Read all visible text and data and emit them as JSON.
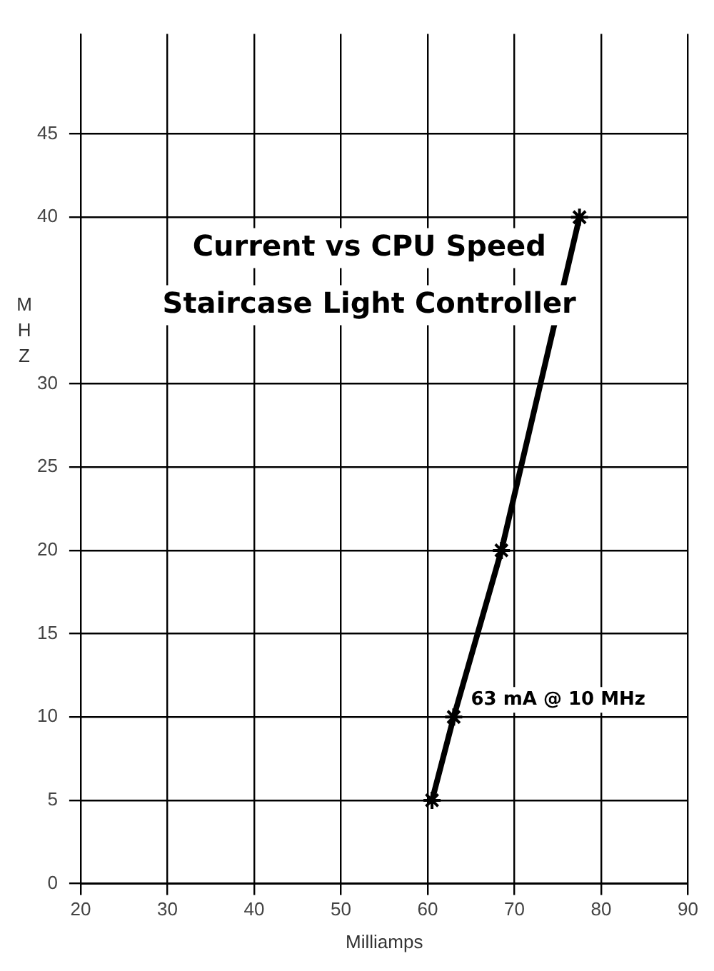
{
  "chart_data": {
    "type": "line",
    "title": "Current vs CPU Speed",
    "subtitle": "Staircase Light Controller",
    "xlabel": "Milliamps",
    "ylabel": "MHZ",
    "x": [
      60.5,
      63,
      68.5,
      77.5
    ],
    "series": [
      {
        "color": "#000000",
        "values": [
          5,
          10,
          20,
          40
        ]
      }
    ],
    "xlim": [
      20,
      90
    ],
    "xticks": [
      20,
      30,
      40,
      50,
      60,
      70,
      80,
      90
    ],
    "ylim": [
      0,
      51
    ],
    "yticks": [
      0,
      5,
      10,
      15,
      20,
      25,
      30,
      40,
      45
    ],
    "grid": true,
    "legend": false,
    "marker": "cross",
    "line_style": "solid",
    "annotations": [
      {
        "text": "63 mA @ 10 MHz",
        "x": 63,
        "y": 10
      }
    ]
  }
}
